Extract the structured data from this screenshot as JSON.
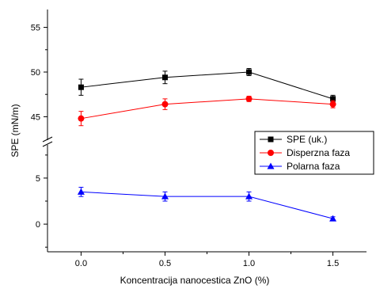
{
  "chart_data": {
    "type": "line",
    "xlabel": "Koncentracija nanocestica ZnO (%)",
    "ylabel": "SPE (mN/m)",
    "x": [
      0.0,
      0.5,
      1.0,
      1.5
    ],
    "x_ticks": [
      "0.0",
      "0.5",
      "1.0",
      "1.5"
    ],
    "xlim": [
      -0.2,
      1.7
    ],
    "axis_break": true,
    "upper_ylim": [
      43,
      57
    ],
    "upper_y_ticks": [
      45,
      50,
      55
    ],
    "lower_ylim": [
      -3,
      8
    ],
    "lower_y_ticks": [
      0,
      5
    ],
    "legend_position": "right",
    "series": [
      {
        "name": "SPE (uk.)",
        "marker": "square",
        "color": "#000000",
        "values": [
          48.3,
          49.4,
          50.0,
          47.0
        ],
        "errors": [
          0.9,
          0.7,
          0.4,
          0.4
        ]
      },
      {
        "name": "Disperzna faza",
        "marker": "circle",
        "color": "#ff0000",
        "values": [
          44.8,
          46.4,
          47.0,
          46.4
        ],
        "errors": [
          0.8,
          0.6,
          0.3,
          0.4
        ]
      },
      {
        "name": "Polarna faza",
        "marker": "triangle",
        "color": "#0000ff",
        "values": [
          3.5,
          3.0,
          3.0,
          0.6
        ],
        "errors": [
          0.5,
          0.5,
          0.5,
          0.2
        ]
      }
    ]
  }
}
